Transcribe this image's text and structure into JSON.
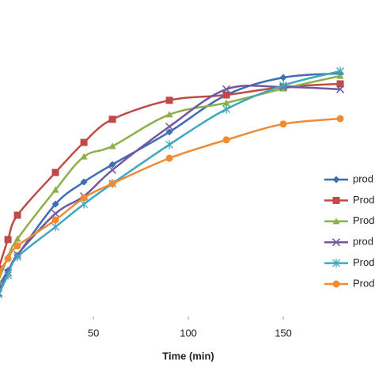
{
  "chart_data": {
    "type": "line",
    "xlabel": "Time (min)",
    "x": [
      0,
      5,
      10,
      30,
      45,
      60,
      90,
      120,
      150,
      180
    ],
    "xlim": [
      0.8,
      198.3
    ],
    "xticks": [
      50,
      100,
      150
    ],
    "ylim": [
      0,
      100
    ],
    "legend": "right",
    "series": [
      {
        "name": "prod",
        "color": "#3d6db5",
        "marker": "diamond",
        "values": [
          9.5,
          14.5,
          19.3,
          35.5,
          42.5,
          48,
          58.3,
          70,
          75.5,
          76.8
        ]
      },
      {
        "name": "Prod",
        "color": "#be4b48",
        "marker": "square",
        "values": [
          15,
          24.3,
          32,
          45.5,
          55,
          62.3,
          68.3,
          70,
          72.5,
          73.5
        ]
      },
      {
        "name": "Prod",
        "color": "#8db04a",
        "marker": "triangle",
        "values": [
          11.3,
          18.8,
          24.5,
          40,
          50.5,
          53.8,
          63.8,
          67.5,
          72,
          76
        ]
      },
      {
        "name": "prod",
        "color": "#7358a0",
        "marker": "x",
        "values": [
          7.5,
          13.8,
          19.5,
          32.5,
          38,
          46.3,
          60,
          71.8,
          72.5,
          71.8
        ]
      },
      {
        "name": "Prod",
        "color": "#3fa7be",
        "marker": "star",
        "values": [
          7,
          13,
          18.8,
          28.3,
          35.5,
          42,
          54.3,
          65.5,
          73,
          77.5
        ]
      },
      {
        "name": "Prod",
        "color": "#f08a33",
        "marker": "circle",
        "values": [
          13.8,
          18.3,
          22.3,
          30.5,
          37.5,
          42,
          50,
          55.8,
          60.8,
          62.5
        ]
      }
    ]
  }
}
